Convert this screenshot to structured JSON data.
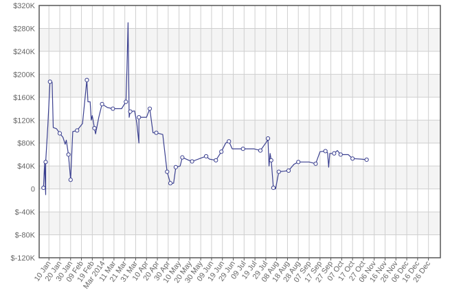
{
  "chart_data": {
    "type": "line",
    "title": "",
    "xlabel": "",
    "ylabel": "",
    "ylim": [
      -120000,
      320000
    ],
    "y_ticks": [
      320000,
      280000,
      240000,
      200000,
      160000,
      120000,
      80000,
      40000,
      0,
      -40000,
      -80000,
      -120000
    ],
    "y_tick_labels": [
      "$320K",
      "$280K",
      "$240K",
      "$200K",
      "$160K",
      "$120K",
      "$80K",
      "$40K",
      "0",
      "$-40K",
      "$-80K",
      "$-120K"
    ],
    "x_range": [
      "2014-01-01",
      "2015-01-06"
    ],
    "x_ticks": [
      "2014-01-10",
      "2014-01-20",
      "2014-01-30",
      "2014-02-09",
      "2014-02-19",
      "2014-03-01",
      "2014-03-11",
      "2014-03-21",
      "2014-03-31",
      "2014-04-10",
      "2014-04-20",
      "2014-04-30",
      "2014-05-10",
      "2014-05-20",
      "2014-05-30",
      "2014-06-09",
      "2014-06-19",
      "2014-06-29",
      "2014-07-09",
      "2014-07-19",
      "2014-07-29",
      "2014-08-08",
      "2014-08-18",
      "2014-08-28",
      "2014-09-07",
      "2014-09-17",
      "2014-09-27",
      "2014-10-07",
      "2014-10-17",
      "2014-10-27",
      "2014-11-06",
      "2014-11-16",
      "2014-11-26",
      "2014-12-06",
      "2014-12-16",
      "2014-12-26"
    ],
    "x_tick_labels": [
      "10 Jan",
      "20 Jan",
      "30 Jan",
      "09 Feb",
      "19 Feb",
      "Mar 2014",
      "11 Mar",
      "21 Mar",
      "31 Mar",
      "10 Apr",
      "20 Apr",
      "30 Apr",
      "10 May",
      "20 May",
      "30 May",
      "09 Jun",
      "19 Jun",
      "29 Jun",
      "09 Jul",
      "19 Jul",
      "29 Jul",
      "08 Aug",
      "18 Aug",
      "28 Aug",
      "07 Sep",
      "17 Sep",
      "27 Sep",
      "07 Oct",
      "17 Oct",
      "27 Oct",
      "06 Nov",
      "16 Nov",
      "26 Nov",
      "06 Dec",
      "16 Dec",
      "26 Dec"
    ],
    "grid": true,
    "legend": "none",
    "colors": {
      "line": "#3a3f8f",
      "marker_fill": "#ffffff",
      "band": "#f4f4f4",
      "grid": "#cfcfcf",
      "axis": "#555555",
      "label": "#666666"
    },
    "series": [
      {
        "marker": "circle",
        "points": [
          {
            "x": "2014-01-05",
            "y": 2000,
            "m": true
          },
          {
            "x": "2014-01-06",
            "y": 45000
          },
          {
            "x": "2014-01-07",
            "y": -10000
          },
          {
            "x": "2014-01-07",
            "y": 47000,
            "m": true
          },
          {
            "x": "2014-01-09",
            "y": 110000
          },
          {
            "x": "2014-01-11",
            "y": 187000,
            "m": true
          },
          {
            "x": "2014-01-13",
            "y": 186000
          },
          {
            "x": "2014-01-14",
            "y": 107000
          },
          {
            "x": "2014-01-17",
            "y": 105000
          },
          {
            "x": "2014-01-20",
            "y": 97000,
            "m": true
          },
          {
            "x": "2014-01-23",
            "y": 90000
          },
          {
            "x": "2014-01-25",
            "y": 78000
          },
          {
            "x": "2014-01-26",
            "y": 85000
          },
          {
            "x": "2014-01-28",
            "y": 60000,
            "m": true
          },
          {
            "x": "2014-01-30",
            "y": 16000,
            "m": true
          },
          {
            "x": "2014-02-01",
            "y": 100000
          },
          {
            "x": "2014-02-05",
            "y": 102000,
            "m": true
          },
          {
            "x": "2014-02-10",
            "y": 114000
          },
          {
            "x": "2014-02-14",
            "y": 190000,
            "m": true
          },
          {
            "x": "2014-02-15",
            "y": 152000
          },
          {
            "x": "2014-02-17",
            "y": 152000
          },
          {
            "x": "2014-02-18",
            "y": 120000
          },
          {
            "x": "2014-02-19",
            "y": 128000
          },
          {
            "x": "2014-02-21",
            "y": 106000,
            "m": true
          },
          {
            "x": "2014-02-22",
            "y": 96000
          },
          {
            "x": "2014-02-25",
            "y": 125000
          },
          {
            "x": "2014-02-28",
            "y": 148000,
            "m": true
          },
          {
            "x": "2014-03-05",
            "y": 142000
          },
          {
            "x": "2014-03-10",
            "y": 140000,
            "m": true
          },
          {
            "x": "2014-03-18",
            "y": 140000
          },
          {
            "x": "2014-03-22",
            "y": 152000,
            "m": true
          },
          {
            "x": "2014-03-23",
            "y": 210000
          },
          {
            "x": "2014-03-24",
            "y": 290000
          },
          {
            "x": "2014-03-25",
            "y": 125000
          },
          {
            "x": "2014-03-26",
            "y": 135000,
            "m": true
          },
          {
            "x": "2014-03-30",
            "y": 136000
          },
          {
            "x": "2014-04-01",
            "y": 115000
          },
          {
            "x": "2014-04-03",
            "y": 80000
          },
          {
            "x": "2014-04-03",
            "y": 125000,
            "m": true
          },
          {
            "x": "2014-04-10",
            "y": 125000
          },
          {
            "x": "2014-04-13",
            "y": 140000,
            "m": true
          },
          {
            "x": "2014-04-16",
            "y": 98000
          },
          {
            "x": "2014-04-19",
            "y": 98000,
            "m": true
          },
          {
            "x": "2014-04-25",
            "y": 95000
          },
          {
            "x": "2014-04-29",
            "y": 30000,
            "m": true
          },
          {
            "x": "2014-05-02",
            "y": 10000,
            "m": true
          },
          {
            "x": "2014-05-05",
            "y": 10000
          },
          {
            "x": "2014-05-07",
            "y": 38000,
            "m": true
          },
          {
            "x": "2014-05-11",
            "y": 40000
          },
          {
            "x": "2014-05-13",
            "y": 55000,
            "m": true
          },
          {
            "x": "2014-05-19",
            "y": 50000
          },
          {
            "x": "2014-05-22",
            "y": 48000,
            "m": true
          },
          {
            "x": "2014-06-01",
            "y": 55000
          },
          {
            "x": "2014-06-04",
            "y": 57000,
            "m": true
          },
          {
            "x": "2014-06-07",
            "y": 52000
          },
          {
            "x": "2014-06-13",
            "y": 50000,
            "m": true
          },
          {
            "x": "2014-06-18",
            "y": 65000,
            "m": true
          },
          {
            "x": "2014-06-22",
            "y": 80000
          },
          {
            "x": "2014-06-25",
            "y": 83000,
            "m": true
          },
          {
            "x": "2014-06-28",
            "y": 70000
          },
          {
            "x": "2014-07-08",
            "y": 70000,
            "m": true
          },
          {
            "x": "2014-07-18",
            "y": 70000
          },
          {
            "x": "2014-07-24",
            "y": 67000,
            "m": true
          },
          {
            "x": "2014-07-30",
            "y": 83000
          },
          {
            "x": "2014-07-31",
            "y": 88000,
            "m": true
          },
          {
            "x": "2014-08-01",
            "y": 40000
          },
          {
            "x": "2014-08-02",
            "y": 62000
          },
          {
            "x": "2014-08-03",
            "y": 50000,
            "m": true
          },
          {
            "x": "2014-08-05",
            "y": 2000,
            "m": true
          },
          {
            "x": "2014-08-07",
            "y": 0
          },
          {
            "x": "2014-08-10",
            "y": 30000,
            "m": true
          },
          {
            "x": "2014-08-15",
            "y": 31000
          },
          {
            "x": "2014-08-19",
            "y": 32000,
            "m": true
          },
          {
            "x": "2014-08-24",
            "y": 43000
          },
          {
            "x": "2014-08-28",
            "y": 47000,
            "m": true
          },
          {
            "x": "2014-09-07",
            "y": 47000
          },
          {
            "x": "2014-09-13",
            "y": 44000,
            "m": true
          },
          {
            "x": "2014-09-17",
            "y": 65000
          },
          {
            "x": "2014-09-22",
            "y": 66000,
            "m": true
          },
          {
            "x": "2014-09-24",
            "y": 63000
          },
          {
            "x": "2014-09-25",
            "y": 38000
          },
          {
            "x": "2014-09-26",
            "y": 62000
          },
          {
            "x": "2014-09-30",
            "y": 62000,
            "m": true
          },
          {
            "x": "2014-10-03",
            "y": 67000
          },
          {
            "x": "2014-10-06",
            "y": 60000,
            "m": true
          },
          {
            "x": "2014-10-13",
            "y": 60000
          },
          {
            "x": "2014-10-17",
            "y": 53000,
            "m": true
          },
          {
            "x": "2014-10-25",
            "y": 52000
          },
          {
            "x": "2014-10-30",
            "y": 51000,
            "m": true
          }
        ]
      }
    ]
  }
}
